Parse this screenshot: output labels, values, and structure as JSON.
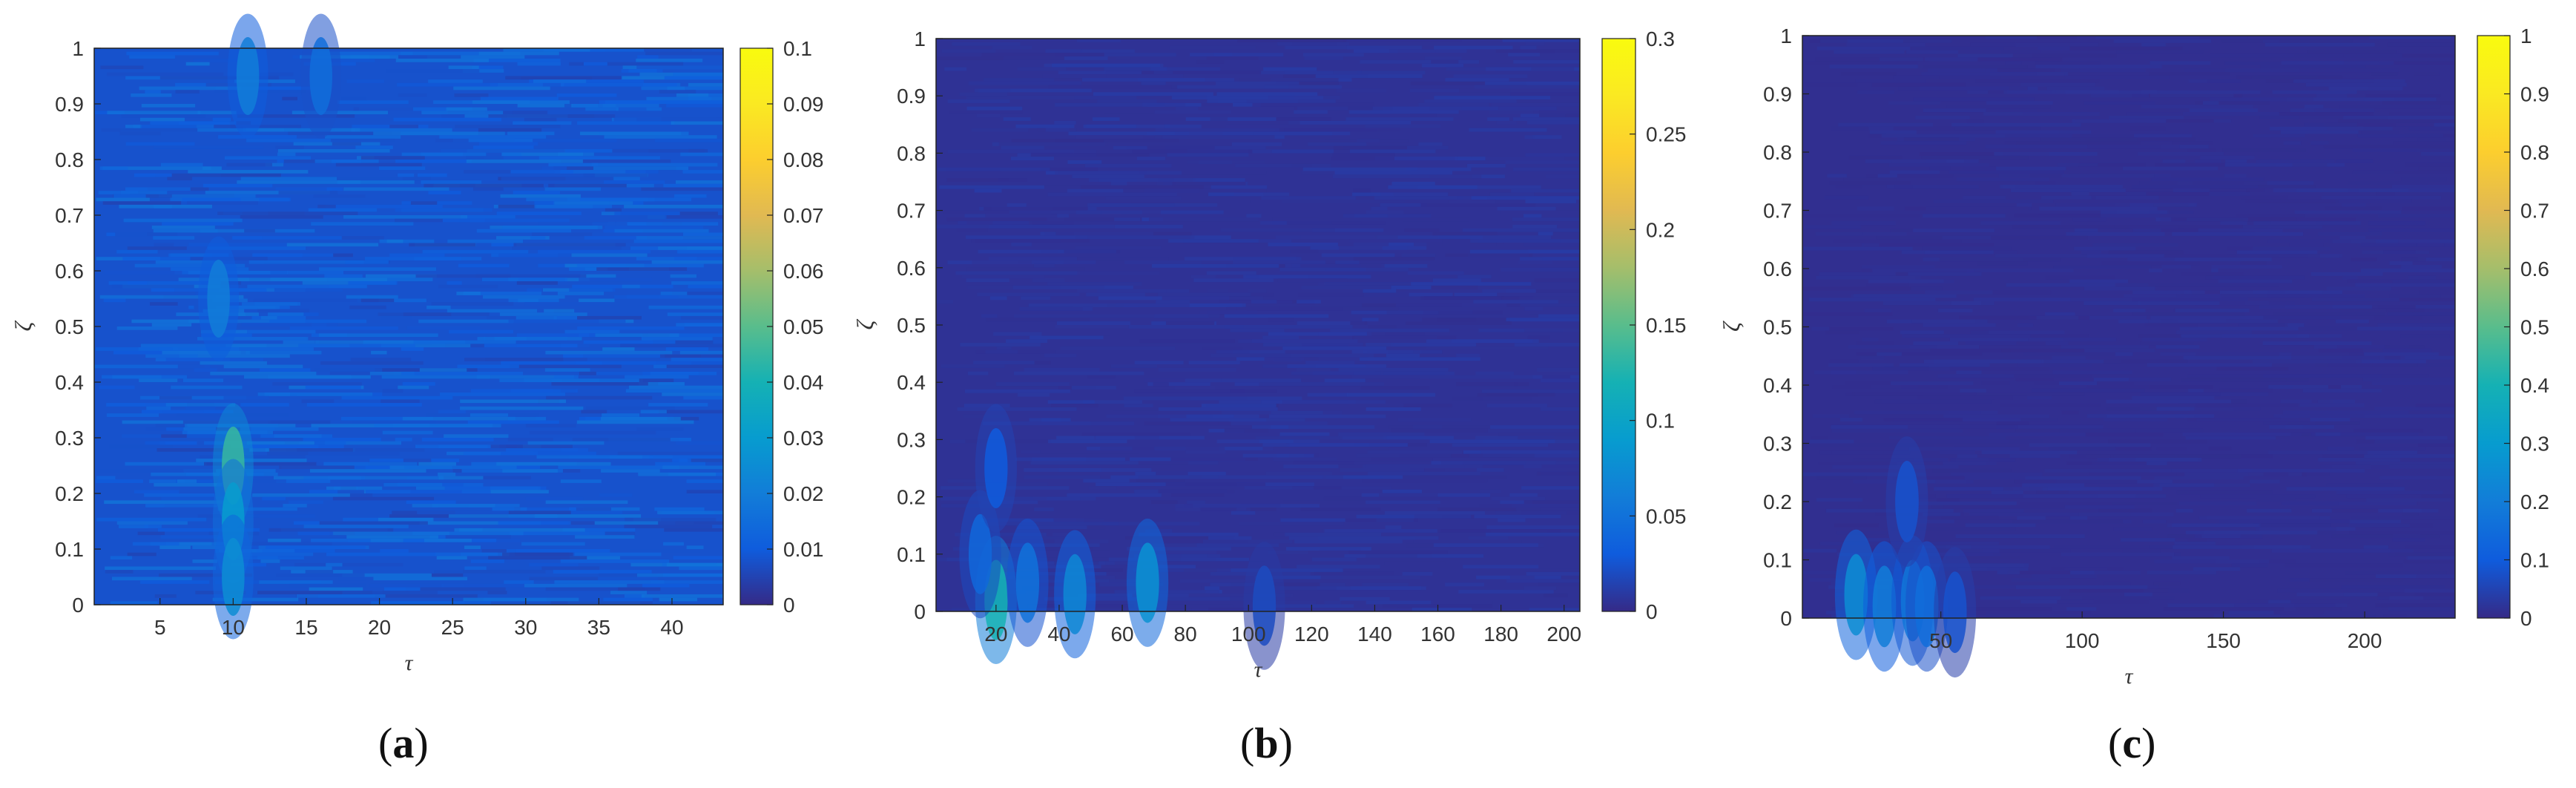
{
  "chart_data": [
    {
      "type": "heatmap",
      "panel_label": "a",
      "xlabel": "τ",
      "ylabel": "ζ",
      "xlim": [
        0.5,
        43.5
      ],
      "ylim": [
        0,
        1
      ],
      "xticks": [
        5,
        10,
        15,
        20,
        25,
        30,
        35,
        40
      ],
      "yticks": [
        0,
        0.1,
        0.2,
        0.3,
        0.4,
        0.5,
        0.6,
        0.7,
        0.8,
        0.9,
        1
      ],
      "colorbar": {
        "min": 0,
        "max": 0.1,
        "ticks": [
          0,
          0.01,
          0.02,
          0.03,
          0.04,
          0.05,
          0.06,
          0.07,
          0.08,
          0.09,
          0.1
        ]
      },
      "colormap": "parula",
      "hotspots": [
        {
          "x": 10,
          "y": 0.25,
          "value": 0.045
        },
        {
          "x": 10,
          "y": 0.15,
          "value": 0.03
        },
        {
          "x": 10,
          "y": 0.05,
          "value": 0.025
        },
        {
          "x": 11,
          "y": 0.95,
          "value": 0.02
        },
        {
          "x": 9,
          "y": 0.55,
          "value": 0.02
        },
        {
          "x": 16,
          "y": 0.95,
          "value": 0.015
        }
      ],
      "background_level": 0.008
    },
    {
      "type": "heatmap",
      "panel_label": "b",
      "xlabel": "τ",
      "ylabel": "ζ",
      "xlim": [
        1,
        205
      ],
      "ylim": [
        0,
        1
      ],
      "xticks": [
        20,
        40,
        60,
        80,
        100,
        120,
        140,
        160,
        180,
        200
      ],
      "yticks": [
        0,
        0.1,
        0.2,
        0.3,
        0.4,
        0.5,
        0.6,
        0.7,
        0.8,
        0.9,
        1
      ],
      "colorbar": {
        "min": 0,
        "max": 0.3,
        "ticks": [
          0,
          0.05,
          0.1,
          0.15,
          0.2,
          0.25,
          0.3
        ]
      },
      "colormap": "parula",
      "hotspots": [
        {
          "x": 20,
          "y": 0.02,
          "value": 0.12
        },
        {
          "x": 45,
          "y": 0.03,
          "value": 0.07
        },
        {
          "x": 68,
          "y": 0.05,
          "value": 0.08
        },
        {
          "x": 30,
          "y": 0.05,
          "value": 0.05
        },
        {
          "x": 15,
          "y": 0.1,
          "value": 0.04
        },
        {
          "x": 20,
          "y": 0.25,
          "value": 0.03
        },
        {
          "x": 105,
          "y": 0.01,
          "value": 0.02
        }
      ],
      "background_level": 0.005
    },
    {
      "type": "heatmap",
      "panel_label": "c",
      "xlabel": "τ",
      "ylabel": "ζ",
      "xlim": [
        1,
        232
      ],
      "ylim": [
        0,
        1
      ],
      "xticks": [
        50,
        100,
        150,
        200
      ],
      "yticks": [
        0,
        0.1,
        0.2,
        0.3,
        0.4,
        0.5,
        0.6,
        0.7,
        0.8,
        0.9,
        1
      ],
      "colorbar": {
        "min": 0,
        "max": 1,
        "ticks": [
          0,
          0.1,
          0.2,
          0.3,
          0.4,
          0.5,
          0.6,
          0.7,
          0.8,
          0.9,
          1
        ]
      },
      "colormap": "parula",
      "hotspots": [
        {
          "x": 20,
          "y": 0.04,
          "value": 0.25
        },
        {
          "x": 30,
          "y": 0.02,
          "value": 0.2
        },
        {
          "x": 40,
          "y": 0.03,
          "value": 0.18
        },
        {
          "x": 45,
          "y": 0.02,
          "value": 0.15
        },
        {
          "x": 38,
          "y": 0.2,
          "value": 0.08
        },
        {
          "x": 55,
          "y": 0.01,
          "value": 0.08
        }
      ],
      "background_level": 0.01
    }
  ]
}
